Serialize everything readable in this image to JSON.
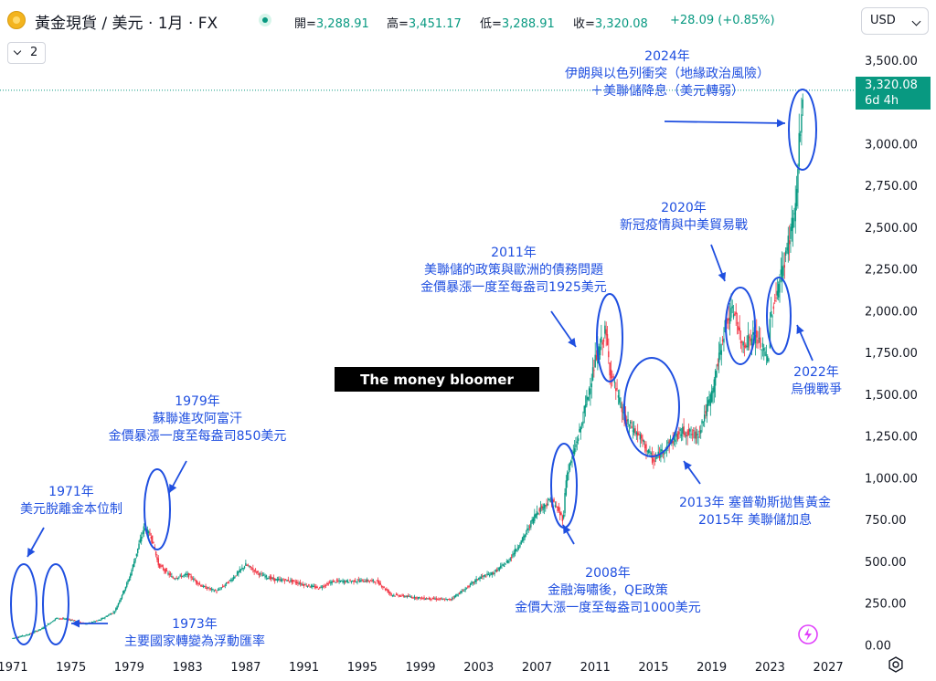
{
  "header": {
    "symbol_title": "黃金現貨 / 美元 · 1月 · FX",
    "open_label": "開=",
    "open_value": "3,288.91",
    "high_label": "高=",
    "high_value": "3,451.17",
    "low_label": "低=",
    "low_value": "3,288.91",
    "close_label": "收=",
    "close_value": "3,320.08",
    "change": "+28.09 (+0.85%)",
    "currency": "USD"
  },
  "indicator_toggle": {
    "count": "2"
  },
  "price_badge": {
    "price": "3,320.08",
    "countdown": "6d 4h"
  },
  "colors": {
    "up": "#089981",
    "down": "#f23645",
    "annotation": "#1f4fe0",
    "axis_text": "#131722"
  },
  "chart_data": {
    "type": "candlestick",
    "x_axis": {
      "ticks": [
        "1971",
        "1975",
        "1979",
        "1983",
        "1987",
        "1991",
        "1995",
        "1999",
        "2003",
        "2007",
        "2011",
        "2015",
        "2019",
        "2023",
        "2027"
      ],
      "range": [
        1970.5,
        2028.5
      ]
    },
    "y_axis": {
      "ticks": [
        "3,500.00",
        "3,000.00",
        "2,750.00",
        "2,500.00",
        "2,250.00",
        "2,000.00",
        "1,750.00",
        "1,500.00",
        "1,250.00",
        "1,000.00",
        "750.00",
        "500.00",
        "250.00",
        "0.00"
      ],
      "range": [
        -20,
        3620
      ]
    },
    "last_price": 3320.08,
    "series": [
      {
        "values": [
          [
            1971,
            40
          ],
          [
            1972,
            60
          ],
          [
            1973,
            97
          ],
          [
            1974,
            160
          ],
          [
            1975,
            150
          ],
          [
            1976,
            125
          ],
          [
            1977,
            150
          ],
          [
            1978,
            200
          ],
          [
            1979,
            400
          ],
          [
            1980,
            700
          ],
          [
            1980.5,
            650
          ],
          [
            1981,
            480
          ],
          [
            1982,
            400
          ],
          [
            1983,
            420
          ],
          [
            1984,
            350
          ],
          [
            1985,
            320
          ],
          [
            1986,
            390
          ],
          [
            1987,
            480
          ],
          [
            1988,
            420
          ],
          [
            1989,
            390
          ],
          [
            1990,
            385
          ],
          [
            1991,
            360
          ],
          [
            1992,
            340
          ],
          [
            1993,
            380
          ],
          [
            1994,
            380
          ],
          [
            1995,
            385
          ],
          [
            1996,
            380
          ],
          [
            1997,
            300
          ],
          [
            1998,
            290
          ],
          [
            1999,
            280
          ],
          [
            2000,
            275
          ],
          [
            2001,
            270
          ],
          [
            2002,
            330
          ],
          [
            2003,
            400
          ],
          [
            2004,
            430
          ],
          [
            2005,
            500
          ],
          [
            2006,
            630
          ],
          [
            2007,
            800
          ],
          [
            2008,
            870
          ],
          [
            2008.8,
            750
          ],
          [
            2009,
            1000
          ],
          [
            2010,
            1300
          ],
          [
            2011,
            1700
          ],
          [
            2011.7,
            1880
          ],
          [
            2012,
            1650
          ],
          [
            2013,
            1350
          ],
          [
            2014,
            1250
          ],
          [
            2015,
            1100
          ],
          [
            2016,
            1200
          ],
          [
            2017,
            1280
          ],
          [
            2018,
            1250
          ],
          [
            2019,
            1500
          ],
          [
            2020,
            1950
          ],
          [
            2020.6,
            2000
          ],
          [
            2021,
            1800
          ],
          [
            2022,
            1850
          ],
          [
            2022.9,
            1700
          ],
          [
            2023,
            1950
          ],
          [
            2024,
            2300
          ],
          [
            2024.8,
            2650
          ],
          [
            2025,
            3000
          ],
          [
            2025.3,
            3320.08
          ]
        ]
      }
    ],
    "annotations": [
      {
        "lines": [
          "1971年",
          "美元脫離金本位制"
        ]
      },
      {
        "lines": [
          "1973年",
          "主要國家轉變為浮動匯率"
        ]
      },
      {
        "lines": [
          "1979年",
          "蘇聯進攻阿富汗",
          "金價暴漲一度至每盎司850美元"
        ]
      },
      {
        "lines": [
          "2008年",
          "金融海嘯後，QE政策",
          "金價大漲一度至每盎司1000美元"
        ]
      },
      {
        "lines": [
          "2011年",
          "美聯儲的政策與歐洲的債務問題",
          "金價暴漲一度至每盎司1925美元"
        ]
      },
      {
        "lines": [
          "2013年 塞普勒斯拋售黃金",
          "2015年 美聯儲加息"
        ]
      },
      {
        "lines": [
          "2020年",
          "新冠疫情與中美貿易戰"
        ]
      },
      {
        "lines": [
          "2022年",
          "烏俄戰爭"
        ]
      },
      {
        "lines": [
          "2024年",
          "伊朗與以色列衝突（地緣政治風險）",
          "＋美聯儲降息（美元轉弱）"
        ]
      }
    ],
    "watermark": "The money bloomer"
  }
}
